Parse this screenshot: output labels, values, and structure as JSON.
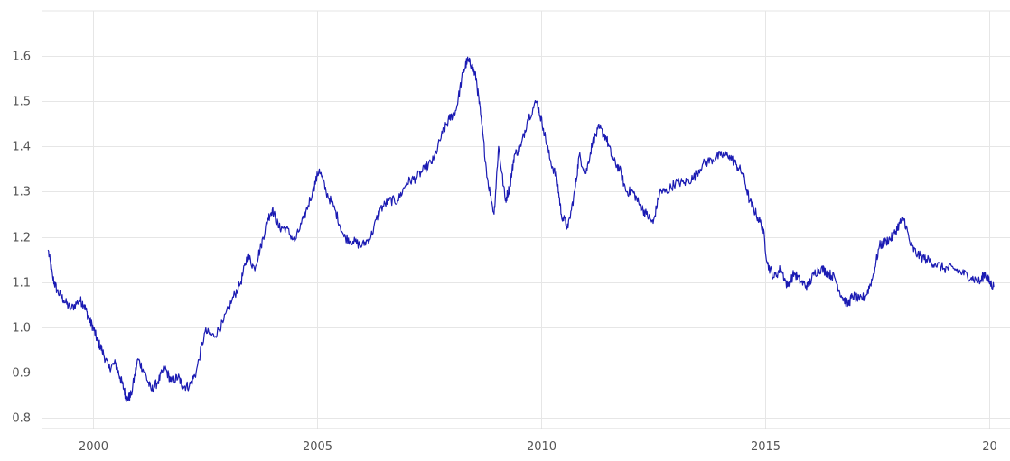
{
  "chart_data": {
    "type": "line",
    "title": "",
    "xlabel": "",
    "ylabel": "",
    "x_ticks": [
      "2000",
      "2005",
      "2010",
      "2015",
      "20"
    ],
    "y_ticks": [
      "0.8",
      "0.9",
      "1.0",
      "1.1",
      "1.2",
      "1.3",
      "1.4",
      "1.5",
      "1.6"
    ],
    "ylim": [
      0.8,
      1.7
    ],
    "xlim": [
      1998.8,
      2020.2
    ],
    "grid": true,
    "legend": "none",
    "line_color": "#1b1bb3",
    "series": [
      {
        "x": [
          1999.0,
          1999.1,
          1999.2,
          1999.35,
          1999.5,
          1999.7,
          1999.8,
          1999.9,
          2000.0,
          2000.1,
          2000.2,
          2000.35,
          2000.5,
          2000.6,
          2000.7,
          2000.75,
          2000.85,
          2001.0,
          2001.15,
          2001.3,
          2001.45,
          2001.6,
          2001.75,
          2001.9,
          2002.0,
          2002.15,
          2002.3,
          2002.5,
          2002.7,
          2002.9,
          2003.1,
          2003.3,
          2003.45,
          2003.6,
          2003.75,
          2003.9,
          2004.0,
          2004.15,
          2004.3,
          2004.5,
          2004.7,
          2004.9,
          2005.05,
          2005.2,
          2005.4,
          2005.6,
          2005.8,
          2006.0,
          2006.2,
          2006.4,
          2006.6,
          2006.8,
          2007.0,
          2007.2,
          2007.4,
          2007.6,
          2007.8,
          2007.95,
          2008.1,
          2008.25,
          2008.35,
          2008.45,
          2008.55,
          2008.65,
          2008.8,
          2008.95,
          2009.05,
          2009.2,
          2009.3,
          2009.4,
          2009.55,
          2009.7,
          2009.9,
          2010.05,
          2010.2,
          2010.35,
          2010.45,
          2010.6,
          2010.75,
          2010.85,
          2011.0,
          2011.15,
          2011.3,
          2011.45,
          2011.6,
          2011.75,
          2011.9,
          2012.05,
          2012.2,
          2012.35,
          2012.5,
          2012.65,
          2012.8,
          2013.0,
          2013.2,
          2013.4,
          2013.6,
          2013.8,
          2014.0,
          2014.2,
          2014.35,
          2014.5,
          2014.65,
          2014.8,
          2014.95,
          2015.05,
          2015.2,
          2015.35,
          2015.5,
          2015.65,
          2015.8,
          2015.95,
          2016.1,
          2016.25,
          2016.4,
          2016.55,
          2016.7,
          2016.85,
          2016.95,
          2017.1,
          2017.25,
          2017.4,
          2017.55,
          2017.7,
          2017.85,
          2018.0,
          2018.1,
          2018.25,
          2018.4,
          2018.6,
          2018.8,
          2019.0,
          2019.2,
          2019.4,
          2019.6,
          2019.8,
          2019.9,
          2020.0,
          2020.1
        ],
        "values": [
          1.17,
          1.11,
          1.08,
          1.06,
          1.04,
          1.06,
          1.05,
          1.02,
          1.0,
          0.97,
          0.95,
          0.91,
          0.92,
          0.89,
          0.86,
          0.84,
          0.85,
          0.93,
          0.9,
          0.86,
          0.88,
          0.91,
          0.88,
          0.89,
          0.87,
          0.87,
          0.9,
          0.99,
          0.98,
          1.01,
          1.06,
          1.1,
          1.16,
          1.13,
          1.18,
          1.24,
          1.26,
          1.22,
          1.22,
          1.19,
          1.24,
          1.3,
          1.35,
          1.3,
          1.26,
          1.2,
          1.19,
          1.18,
          1.2,
          1.26,
          1.28,
          1.28,
          1.32,
          1.33,
          1.35,
          1.37,
          1.43,
          1.46,
          1.48,
          1.56,
          1.59,
          1.58,
          1.55,
          1.47,
          1.33,
          1.25,
          1.4,
          1.28,
          1.31,
          1.38,
          1.4,
          1.46,
          1.5,
          1.44,
          1.37,
          1.33,
          1.25,
          1.22,
          1.3,
          1.38,
          1.34,
          1.41,
          1.44,
          1.42,
          1.37,
          1.35,
          1.3,
          1.3,
          1.27,
          1.25,
          1.23,
          1.3,
          1.3,
          1.32,
          1.32,
          1.33,
          1.36,
          1.37,
          1.38,
          1.38,
          1.36,
          1.34,
          1.28,
          1.25,
          1.22,
          1.14,
          1.11,
          1.13,
          1.09,
          1.12,
          1.1,
          1.09,
          1.12,
          1.13,
          1.12,
          1.11,
          1.07,
          1.05,
          1.07,
          1.06,
          1.07,
          1.11,
          1.18,
          1.19,
          1.2,
          1.23,
          1.24,
          1.18,
          1.16,
          1.15,
          1.14,
          1.13,
          1.13,
          1.12,
          1.11,
          1.1,
          1.12,
          1.1,
          1.09
        ]
      }
    ]
  }
}
